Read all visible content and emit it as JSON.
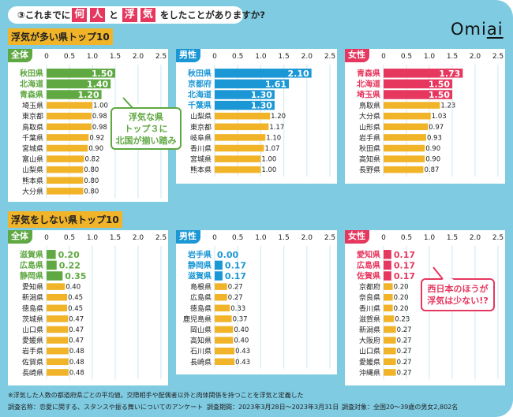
{
  "header": {
    "title_prefix": "③これまでに",
    "title_hl1": "何",
    "title_hl2": "人",
    "title_mid": "と",
    "title_hl3": "浮",
    "title_hl4": "気",
    "title_suffix": "をしたことがありますか?",
    "logo_main": "Omi",
    "logo_under": "ai",
    "logo_dot_letter": "g"
  },
  "colors": {
    "background": "#7ecbe2",
    "highlight_yellow": "#f1b429",
    "bar_default": "#f1b429",
    "all_green": "#5fa842",
    "male_blue": "#1b97d5",
    "female_pink": "#e6375f",
    "grid": "#d6ebf5"
  },
  "sections": {
    "top_label": "浮気が多い県トップ10",
    "bottom_label": "浮気をしない県トップ10"
  },
  "callouts": {
    "top": [
      "浮気な県",
      "トップ３に",
      "北国が揃い踏み"
    ],
    "bottom": [
      "西日本のほうが",
      "浮気は少ない!?"
    ]
  },
  "footer": {
    "note": "※浮気した人数の都道府県ごとの平均値。交際相手や配偶者以外と肉体関係を持つことを浮気と定義した",
    "survey_name": "調査名称：恋愛に関する、スタンスや振る舞いについてのアンケート",
    "survey_period": "調査期間：2023年3月28日〜2023年3月31日",
    "survey_target": "調査対象：全国20〜39歳の男女2,802名"
  },
  "chart_data": [
    {
      "type": "bar",
      "orientation": "horizontal",
      "title": "浮気が多い県トップ10",
      "group": "全体",
      "xlim": [
        0,
        2.5
      ],
      "xticks": [
        "0",
        "0.5",
        "1.0",
        "1.5",
        "2.0",
        "2.5"
      ],
      "grid": true,
      "highlight_count": 3,
      "accent": "#5fa842",
      "categories": [
        "秋田県",
        "北海道",
        "青森県",
        "埼玉県",
        "東京都",
        "鳥取県",
        "千葉県",
        "宮城県",
        "富山県",
        "山梨県",
        "熊本県",
        "大分県"
      ],
      "values": [
        1.5,
        1.4,
        1.2,
        1.0,
        0.98,
        0.98,
        0.92,
        0.9,
        0.82,
        0.8,
        0.8,
        0.8
      ],
      "labels": [
        "1.50",
        "1.40",
        "1.20",
        "1.00",
        "0.98",
        "0.98",
        "0.92",
        "0.90",
        "0.82",
        "0.80",
        "0.80",
        "0.80"
      ]
    },
    {
      "type": "bar",
      "orientation": "horizontal",
      "title": "浮気が多い県トップ10",
      "group": "男性",
      "xlim": [
        0,
        2.5
      ],
      "xticks": [
        "0",
        "0.5",
        "1.0",
        "1.5",
        "2.0",
        "2.5"
      ],
      "grid": true,
      "highlight_count": 4,
      "accent": "#1b97d5",
      "categories": [
        "秋田県",
        "京都府",
        "北海道",
        "千葉県",
        "山梨県",
        "東京都",
        "岐阜県",
        "香川県",
        "宮城県",
        "熊本県"
      ],
      "values": [
        2.1,
        1.61,
        1.3,
        1.3,
        1.2,
        1.17,
        1.1,
        1.07,
        1.0,
        1.0
      ],
      "labels": [
        "2.10",
        "1.61",
        "1.30",
        "1.30",
        "1.20",
        "1.17",
        "1.10",
        "1.07",
        "1.00",
        "1.00"
      ]
    },
    {
      "type": "bar",
      "orientation": "horizontal",
      "title": "浮気が多い県トップ10",
      "group": "女性",
      "xlim": [
        0,
        2.5
      ],
      "xticks": [
        "0",
        "0.5",
        "1.0",
        "1.5",
        "2.0",
        "2.5"
      ],
      "grid": true,
      "highlight_count": 3,
      "accent": "#e6375f",
      "categories": [
        "青森県",
        "北海道",
        "埼玉県",
        "鳥取県",
        "大分県",
        "山形県",
        "岩手県",
        "秋田県",
        "高知県",
        "長野県"
      ],
      "values": [
        1.73,
        1.5,
        1.5,
        1.23,
        1.03,
        0.97,
        0.93,
        0.9,
        0.9,
        0.87
      ],
      "labels": [
        "1.73",
        "1.50",
        "1.50",
        "1.23",
        "1.03",
        "0.97",
        "0.93",
        "0.90",
        "0.90",
        "0.87"
      ]
    },
    {
      "type": "bar",
      "orientation": "horizontal",
      "title": "浮気をしない県トップ10",
      "group": "全体",
      "xlim": [
        0,
        2.5
      ],
      "xticks": [
        "0",
        "0.5",
        "1.0",
        "1.5",
        "2.0",
        "2.5"
      ],
      "grid": true,
      "highlight_count": 3,
      "accent": "#5fa842",
      "categories": [
        "滋賀県",
        "広島県",
        "静岡県",
        "愛知県",
        "新潟県",
        "徳島県",
        "茨城県",
        "山口県",
        "愛媛県",
        "岩手県",
        "佐賀県",
        "長崎県"
      ],
      "values": [
        0.2,
        0.22,
        0.35,
        0.4,
        0.45,
        0.45,
        0.47,
        0.47,
        0.47,
        0.48,
        0.48,
        0.48
      ],
      "labels": [
        "0.20",
        "0.22",
        "0.35",
        "0.40",
        "0.45",
        "0.45",
        "0.47",
        "0.47",
        "0.47",
        "0.48",
        "0.48",
        "0.48"
      ]
    },
    {
      "type": "bar",
      "orientation": "horizontal",
      "title": "浮気をしない県トップ10",
      "group": "男性",
      "xlim": [
        0,
        2.5
      ],
      "xticks": [
        "0",
        "0.5",
        "1.0",
        "1.5",
        "2.0",
        "2.5"
      ],
      "grid": true,
      "highlight_count": 3,
      "accent": "#1b97d5",
      "categories": [
        "岩手県",
        "静岡県",
        "滋賀県",
        "島根県",
        "広島県",
        "徳島県",
        "鹿児島県",
        "岡山県",
        "高知県",
        "石川県",
        "長崎県"
      ],
      "values": [
        0.0,
        0.17,
        0.17,
        0.27,
        0.27,
        0.33,
        0.37,
        0.4,
        0.4,
        0.43,
        0.43
      ],
      "labels": [
        "0.00",
        "0.17",
        "0.17",
        "0.27",
        "0.27",
        "0.33",
        "0.37",
        "0.40",
        "0.40",
        "0.43",
        "0.43"
      ]
    },
    {
      "type": "bar",
      "orientation": "horizontal",
      "title": "浮気をしない県トップ10",
      "group": "女性",
      "xlim": [
        0,
        2.5
      ],
      "xticks": [
        "0",
        "0.5",
        "1.0",
        "1.5",
        "2.0",
        "2.5"
      ],
      "grid": true,
      "highlight_count": 3,
      "accent": "#e6375f",
      "categories": [
        "愛知県",
        "広島県",
        "佐賀県",
        "京都府",
        "奈良県",
        "香川県",
        "滋賀県",
        "新潟県",
        "大阪府",
        "山口県",
        "愛媛県",
        "沖縄県"
      ],
      "values": [
        0.17,
        0.17,
        0.17,
        0.2,
        0.2,
        0.2,
        0.23,
        0.27,
        0.27,
        0.27,
        0.27,
        0.27
      ],
      "labels": [
        "0.17",
        "0.17",
        "0.17",
        "0.20",
        "0.20",
        "0.20",
        "0.23",
        "0.27",
        "0.27",
        "0.27",
        "0.27",
        "0.27"
      ]
    }
  ]
}
